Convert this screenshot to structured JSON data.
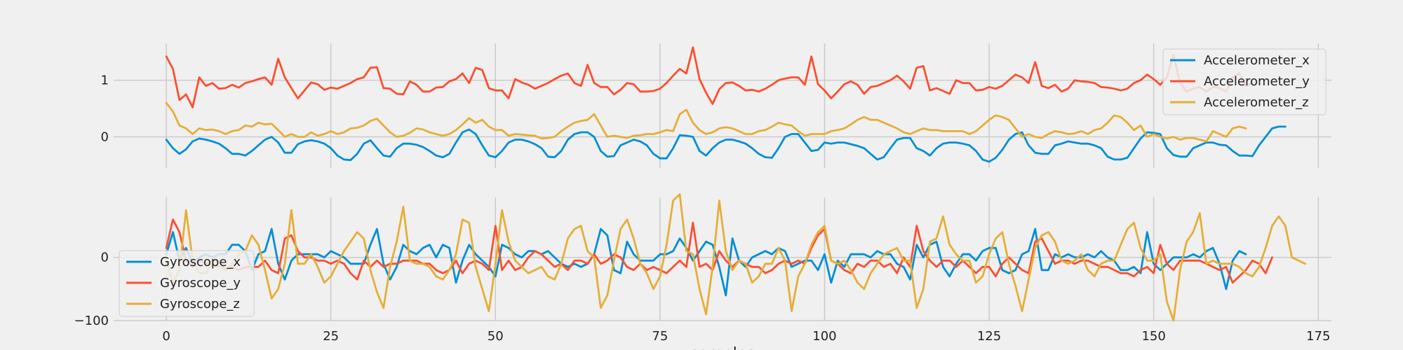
{
  "chart_data": [
    {
      "type": "line",
      "title": "",
      "xlabel": "",
      "ylabel": "",
      "xlim": [
        -8,
        177
      ],
      "ylim": [
        -0.55,
        1.65
      ],
      "xticks": [
        0,
        25,
        50,
        75,
        100,
        125,
        150,
        175
      ],
      "yticks": [
        0,
        1
      ],
      "grid": true,
      "legend_position": "top-right",
      "x_start": 0,
      "series": [
        {
          "name": "Accelerometer_x",
          "color": "#008fd5",
          "values": [
            -0.05,
            -0.2,
            -0.3,
            -0.22,
            -0.08,
            -0.03,
            -0.05,
            -0.08,
            -0.12,
            -0.2,
            -0.3,
            -0.3,
            -0.33,
            -0.25,
            -0.15,
            -0.05,
            0.0,
            -0.1,
            -0.28,
            -0.28,
            -0.13,
            -0.08,
            -0.06,
            -0.08,
            -0.12,
            -0.2,
            -0.33,
            -0.4,
            -0.41,
            -0.3,
            -0.12,
            -0.06,
            -0.2,
            -0.33,
            -0.35,
            -0.2,
            -0.12,
            -0.12,
            -0.14,
            -0.18,
            -0.25,
            -0.33,
            -0.36,
            -0.3,
            -0.1,
            0.08,
            0.13,
            0.05,
            -0.15,
            -0.33,
            -0.36,
            -0.25,
            -0.1,
            -0.05,
            -0.05,
            -0.08,
            -0.13,
            -0.2,
            -0.35,
            -0.36,
            -0.25,
            -0.05,
            0.05,
            0.08,
            0.08,
            0.0,
            -0.25,
            -0.35,
            -0.34,
            -0.15,
            -0.1,
            -0.05,
            -0.08,
            -0.15,
            -0.3,
            -0.38,
            -0.38,
            -0.2,
            0.03,
            0.02,
            0.0,
            -0.25,
            -0.33,
            -0.2,
            -0.1,
            -0.05,
            -0.05,
            -0.08,
            -0.12,
            -0.2,
            -0.3,
            -0.36,
            -0.37,
            -0.2,
            0.0,
            0.05,
            0.05,
            -0.1,
            -0.25,
            -0.23,
            -0.1,
            -0.12,
            -0.1,
            -0.1,
            -0.13,
            -0.16,
            -0.2,
            -0.3,
            -0.4,
            -0.36,
            -0.2,
            -0.05,
            -0.02,
            -0.02,
            -0.2,
            -0.25,
            -0.33,
            -0.2,
            -0.12,
            -0.1,
            -0.1,
            -0.12,
            -0.15,
            -0.25,
            -0.4,
            -0.44,
            -0.37,
            -0.23,
            -0.05,
            0.05,
            0.08,
            -0.15,
            -0.28,
            -0.3,
            -0.3,
            -0.15,
            -0.12,
            -0.08,
            -0.1,
            -0.12,
            -0.12,
            -0.15,
            -0.2,
            -0.35,
            -0.4,
            -0.4,
            -0.37,
            -0.2,
            -0.03,
            0.08,
            0.07,
            0.05,
            -0.2,
            -0.32,
            -0.35,
            -0.35,
            -0.2,
            -0.15,
            -0.1,
            -0.1,
            -0.14,
            -0.15,
            -0.25,
            -0.33,
            -0.33,
            -0.34,
            -0.15,
            0.0,
            0.15,
            0.18,
            0.18
          ]
        },
        {
          "name": "Accelerometer_y",
          "color": "#fc4f30",
          "values": [
            1.42,
            1.2,
            0.65,
            0.75,
            0.52,
            1.05,
            0.9,
            0.95,
            0.85,
            0.86,
            0.92,
            0.87,
            0.95,
            0.98,
            1.02,
            1.05,
            0.92,
            1.38,
            1.05,
            0.86,
            0.68,
            0.82,
            0.96,
            0.93,
            0.83,
            0.87,
            0.85,
            0.9,
            0.95,
            1.02,
            1.05,
            1.22,
            1.23,
            0.86,
            0.85,
            0.76,
            0.75,
            0.98,
            0.92,
            0.8,
            0.8,
            0.87,
            0.88,
            0.98,
            1.02,
            1.12,
            0.95,
            1.22,
            1.18,
            0.86,
            0.82,
            0.82,
            0.68,
            1.02,
            0.96,
            0.92,
            0.85,
            0.9,
            0.95,
            1.02,
            1.08,
            1.12,
            0.95,
            0.9,
            1.27,
            0.95,
            0.88,
            0.88,
            0.75,
            0.83,
            0.95,
            0.93,
            0.8,
            0.8,
            0.81,
            0.85,
            0.95,
            1.08,
            1.2,
            1.12,
            1.58,
            1.02,
            0.78,
            0.58,
            0.84,
            0.95,
            0.96,
            0.9,
            0.82,
            0.83,
            0.8,
            0.85,
            0.92,
            1.0,
            1.03,
            1.05,
            1.05,
            0.92,
            1.42,
            0.93,
            0.82,
            0.68,
            0.8,
            0.93,
            0.98,
            0.92,
            0.76,
            0.88,
            0.9,
            0.95,
            1.0,
            1.08,
            0.98,
            0.85,
            1.22,
            1.25,
            0.82,
            0.86,
            0.81,
            0.76,
            1.0,
            0.95,
            0.95,
            0.82,
            0.83,
            0.88,
            0.85,
            0.9,
            1.0,
            1.1,
            1.05,
            0.95,
            1.32,
            0.9,
            0.86,
            0.92,
            0.8,
            0.85,
            1.0,
            0.98,
            0.97,
            0.95,
            0.88,
            0.87,
            0.85,
            0.82,
            0.85,
            0.95,
            1.0,
            1.1,
            1.02,
            0.92,
            1.05,
            1.45,
            0.95,
            0.8,
            0.85,
            0.88,
            0.8,
            0.88,
            0.86,
            0.8,
            1.05,
            1.12,
            0.9,
            0.95
          ]
        },
        {
          "name": "Accelerometer_z",
          "color": "#e5ae38",
          "values": [
            0.6,
            0.45,
            0.2,
            0.15,
            0.05,
            0.15,
            0.12,
            0.13,
            0.1,
            0.05,
            0.1,
            0.12,
            0.2,
            0.18,
            0.25,
            0.22,
            0.23,
            0.12,
            0.0,
            0.05,
            0.0,
            0.0,
            0.08,
            0.02,
            0.05,
            0.1,
            0.05,
            0.08,
            0.15,
            0.16,
            0.2,
            0.28,
            0.32,
            0.2,
            0.08,
            0.0,
            0.02,
            0.07,
            0.15,
            0.13,
            0.08,
            0.05,
            0.02,
            0.05,
            0.12,
            0.22,
            0.33,
            0.25,
            0.3,
            0.18,
            0.12,
            0.12,
            0.02,
            0.05,
            0.04,
            0.03,
            0.02,
            -0.03,
            -0.02,
            0.0,
            0.1,
            0.18,
            0.25,
            0.28,
            0.3,
            0.4,
            0.2,
            0.0,
            0.02,
            0.0,
            -0.02,
            0.02,
            0.03,
            0.05,
            0.05,
            0.08,
            0.12,
            0.1,
            0.4,
            0.48,
            0.25,
            0.12,
            0.05,
            0.08,
            0.15,
            0.17,
            0.15,
            0.1,
            0.05,
            0.05,
            0.1,
            0.12,
            0.18,
            0.25,
            0.22,
            0.2,
            0.1,
            0.02,
            0.05,
            0.05,
            0.05,
            0.1,
            0.12,
            0.15,
            0.22,
            0.3,
            0.35,
            0.3,
            0.3,
            0.25,
            0.2,
            0.15,
            0.08,
            0.05,
            0.1,
            0.15,
            0.12,
            0.12,
            0.1,
            0.1,
            0.1,
            0.1,
            0.05,
            0.1,
            0.2,
            0.3,
            0.38,
            0.35,
            0.3,
            0.15,
            0.0,
            0.05,
            0.0,
            -0.02,
            0.05,
            0.1,
            0.08,
            0.05,
            0.06,
            0.1,
            0.05,
            0.12,
            0.15,
            0.25,
            0.38,
            0.35,
            0.25,
            0.12,
            0.2,
            0.0,
            0.05,
            0.0,
            -0.03,
            0.0,
            -0.05,
            -0.02,
            -0.02,
            -0.05,
            -0.08,
            0.1,
            0.05,
            0.0,
            0.15,
            0.18,
            0.15
          ]
        }
      ]
    },
    {
      "type": "line",
      "title": "",
      "xlabel": "samples",
      "ylabel": "",
      "xlim": [
        -8,
        177
      ],
      "ylim": [
        -100,
        95
      ],
      "xticks": [
        0,
        25,
        50,
        75,
        100,
        125,
        150,
        175
      ],
      "yticks": [
        -100,
        0
      ],
      "grid": true,
      "legend_position": "bottom-left",
      "x_start": 0,
      "series": [
        {
          "name": "Gyroscope_x",
          "color": "#008fd5",
          "values": [
            5,
            40,
            -5,
            15,
            -10,
            0,
            5,
            0,
            5,
            5,
            20,
            20,
            10,
            -20,
            5,
            10,
            45,
            -10,
            -35,
            -5,
            5,
            5,
            5,
            5,
            0,
            10,
            5,
            0,
            -10,
            -10,
            -10,
            20,
            45,
            -10,
            -35,
            -15,
            20,
            10,
            5,
            15,
            20,
            0,
            20,
            15,
            -40,
            -5,
            20,
            5,
            -5,
            -15,
            -30,
            20,
            15,
            5,
            0,
            10,
            10,
            5,
            10,
            0,
            -10,
            -15,
            -10,
            -15,
            -10,
            5,
            45,
            35,
            -20,
            -25,
            25,
            5,
            -5,
            -5,
            -5,
            5,
            5,
            10,
            30,
            15,
            -5,
            10,
            25,
            20,
            -15,
            -60,
            30,
            -5,
            -15,
            0,
            5,
            10,
            5,
            15,
            10,
            -15,
            -10,
            -5,
            -5,
            -20,
            5,
            -40,
            -5,
            -15,
            5,
            5,
            5,
            0,
            10,
            5,
            5,
            -10,
            -15,
            -35,
            20,
            0,
            20,
            25,
            -15,
            -30,
            -10,
            5,
            5,
            -5,
            10,
            15,
            15,
            -20,
            -25,
            -20,
            5,
            10,
            45,
            -20,
            -20,
            5,
            0,
            5,
            0,
            0,
            5,
            0,
            10,
            0,
            -5,
            -20,
            -20,
            -15,
            -25,
            40,
            -10,
            -20,
            -10,
            0,
            0,
            0,
            5,
            0,
            10,
            15,
            -10,
            -50,
            -5,
            10,
            5
          ]
        },
        {
          "name": "Gyroscope_y",
          "color": "#fc4f30",
          "values": [
            15,
            60,
            40,
            -5,
            -15,
            -5,
            -10,
            -5,
            -5,
            -20,
            -15,
            -20,
            -15,
            -15,
            -15,
            -5,
            -20,
            -25,
            30,
            35,
            10,
            0,
            0,
            -5,
            -5,
            -10,
            -5,
            -10,
            -25,
            -35,
            -5,
            -15,
            -5,
            -15,
            -10,
            -10,
            -5,
            -5,
            -5,
            -10,
            -10,
            -20,
            -25,
            -20,
            -5,
            -25,
            -10,
            -5,
            -10,
            -20,
            50,
            -20,
            -5,
            -20,
            -15,
            0,
            10,
            5,
            -5,
            -15,
            -10,
            -20,
            -5,
            -5,
            -10,
            5,
            -10,
            -5,
            5,
            0,
            -15,
            -20,
            -10,
            -20,
            -15,
            -20,
            -25,
            -15,
            -5,
            -15,
            55,
            -15,
            -10,
            -20,
            10,
            -5,
            -15,
            -5,
            -10,
            -15,
            -15,
            -25,
            -20,
            -10,
            -5,
            -10,
            -5,
            -10,
            15,
            35,
            45,
            -5,
            -10,
            -20,
            -25,
            -10,
            -15,
            -5,
            -5,
            -15,
            -10,
            -25,
            0,
            -15,
            50,
            10,
            -5,
            -15,
            -5,
            -5,
            -15,
            -5,
            -15,
            -25,
            -15,
            -15,
            -30,
            -10,
            0,
            -10,
            -20,
            -25,
            25,
            30,
            10,
            -10,
            -5,
            -5,
            -10,
            -5,
            -5,
            -10,
            -15,
            -15,
            -20,
            -25,
            -25,
            -30,
            -20,
            -15,
            -25,
            20,
            -10,
            -20,
            -5,
            -5,
            -5,
            -5,
            -10,
            -15,
            -20,
            -15,
            -40,
            -30,
            -20,
            -5,
            -10,
            -25,
            0
          ]
        },
        {
          "name": "Gyroscope_z",
          "color": "#e5ae38",
          "values": [
            -5,
            -40,
            -20,
            75,
            -5,
            -25,
            -25,
            -10,
            -15,
            -20,
            -10,
            5,
            10,
            35,
            20,
            -20,
            -65,
            -50,
            -10,
            75,
            -10,
            -10,
            5,
            -15,
            -40,
            -30,
            -10,
            10,
            25,
            40,
            30,
            -20,
            -55,
            -80,
            -15,
            25,
            80,
            -5,
            -10,
            -10,
            -15,
            -30,
            -35,
            -20,
            5,
            60,
            55,
            -15,
            -50,
            -85,
            -10,
            75,
            25,
            -5,
            -15,
            -25,
            -20,
            -15,
            -30,
            -35,
            -10,
            30,
            45,
            50,
            10,
            0,
            -80,
            -60,
            -5,
            45,
            60,
            30,
            -10,
            -25,
            -50,
            -30,
            20,
            90,
            100,
            10,
            5,
            -50,
            -90,
            -15,
            90,
            10,
            -20,
            -5,
            -10,
            -40,
            -30,
            -10,
            -10,
            15,
            -5,
            -85,
            -30,
            -10,
            20,
            40,
            50,
            -5,
            -10,
            -5,
            -20,
            -40,
            -50,
            -25,
            -10,
            5,
            10,
            15,
            -5,
            -5,
            -80,
            -50,
            25,
            30,
            65,
            20,
            5,
            -5,
            -5,
            -40,
            -30,
            5,
            30,
            40,
            -10,
            -45,
            -85,
            -35,
            15,
            35,
            40,
            25,
            -5,
            -10,
            -5,
            5,
            -20,
            -30,
            -10,
            -5,
            -5,
            20,
            45,
            55,
            15,
            -5,
            -5,
            5,
            -70,
            -100,
            -20,
            25,
            40,
            70,
            -10,
            -5,
            -10,
            -10,
            -10,
            -15,
            -25,
            -30,
            -15,
            15,
            50,
            65,
            50,
            0,
            -5,
            -10
          ]
        }
      ]
    }
  ]
}
